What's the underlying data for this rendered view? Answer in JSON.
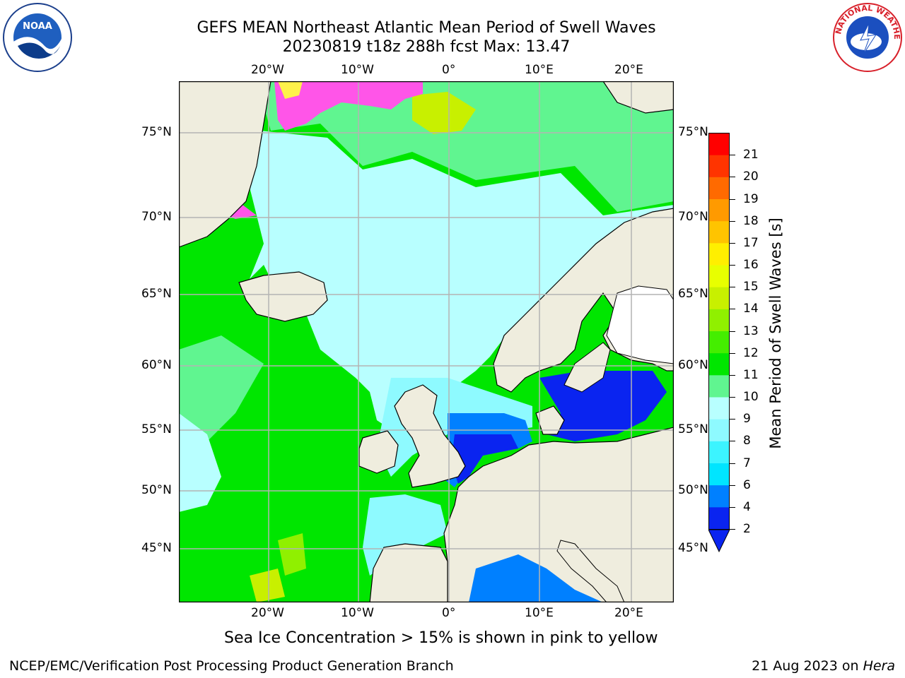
{
  "header": {
    "title_line1": "GEFS MEAN Northeast Atlantic Mean Period of Swell Waves",
    "title_line2": "20230819 t18z 288h fcst   Max: 13.47"
  },
  "logos": {
    "left": "NOAA",
    "right": "NATIONAL WEATHER SERVICE"
  },
  "map": {
    "lon_labels": [
      "20°W",
      "10°W",
      "0°",
      "10°E",
      "20°E"
    ],
    "lat_labels": [
      "75°N",
      "70°N",
      "65°N",
      "60°N",
      "55°N",
      "50°N",
      "45°N"
    ],
    "colors": {
      "land": "#efedde",
      "grid": "#b4b4b4",
      "ice_pink": "#ff55e8",
      "ice_yellow": "#fff14a"
    }
  },
  "colorbar": {
    "label": "Mean Period of Swell Waves [s]",
    "ticks": [
      "2",
      "4",
      "6",
      "7",
      "8",
      "9",
      "10",
      "11",
      "12",
      "13",
      "14",
      "15",
      "16",
      "17",
      "18",
      "19",
      "20",
      "21"
    ],
    "colors": [
      "#0a24f0",
      "#0080ff",
      "#00e5ff",
      "#3cf4ff",
      "#8efaff",
      "#b8ffff",
      "#60f590",
      "#00e600",
      "#44ee00",
      "#90f000",
      "#c8f000",
      "#e8ff00",
      "#ffef00",
      "#ffc400",
      "#ff9a00",
      "#ff6a00",
      "#ff3400",
      "#ff0000"
    ]
  },
  "caption": "Sea Ice Concentration > 15% is shown in pink to yellow",
  "footer": {
    "left": "NCEP/EMC/Verification Post Processing Product Generation Branch",
    "right_prefix": "21 Aug 2023 on ",
    "right_host": "Hera"
  }
}
